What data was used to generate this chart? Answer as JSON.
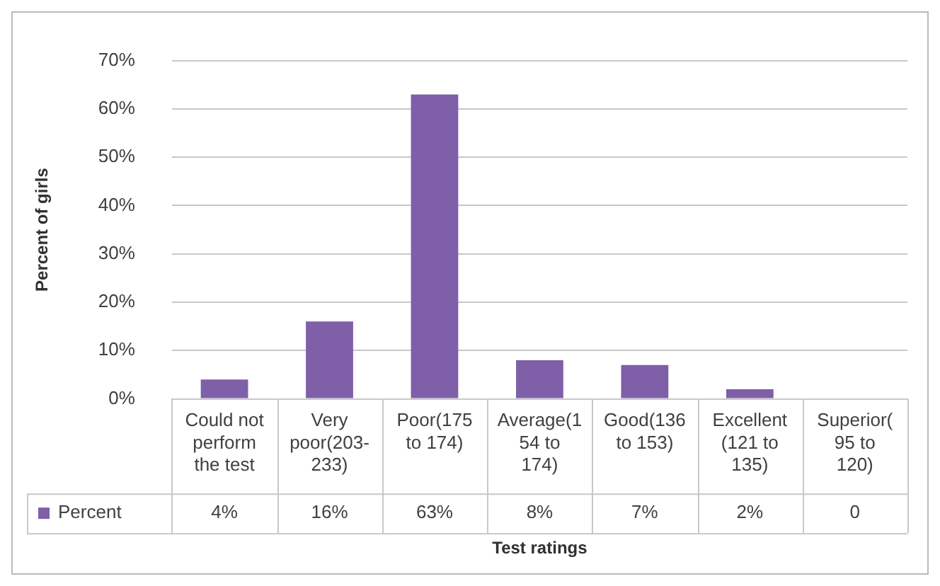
{
  "chart_data": {
    "type": "bar",
    "xlabel": "Test ratings",
    "ylabel": "Percent of girls",
    "categories": [
      "Could not perform the test",
      "Very poor(203-233)",
      "Poor(175 to 174)",
      "Average(154 to 174)",
      "Good(136 to 153)",
      "Excellent(121 to 135)",
      "Superior(95 to 120)"
    ],
    "series": [
      {
        "name": "Percent",
        "color": "#7e5fa8",
        "values": [
          4,
          16,
          63,
          8,
          7,
          2,
          0
        ],
        "value_labels": [
          "4%",
          "16%",
          "63%",
          "8%",
          "7%",
          "2%",
          "0"
        ]
      }
    ],
    "ylim": [
      0,
      70
    ],
    "yticks": [
      {
        "value": 0,
        "label": "0%"
      },
      {
        "value": 10,
        "label": "10%"
      },
      {
        "value": 20,
        "label": "20%"
      },
      {
        "value": 30,
        "label": "30%"
      },
      {
        "value": 40,
        "label": "40%"
      },
      {
        "value": 50,
        "label": "50%"
      },
      {
        "value": 60,
        "label": "60%"
      },
      {
        "value": 70,
        "label": "70%"
      }
    ],
    "grid": "y",
    "legend": "bottom left"
  }
}
